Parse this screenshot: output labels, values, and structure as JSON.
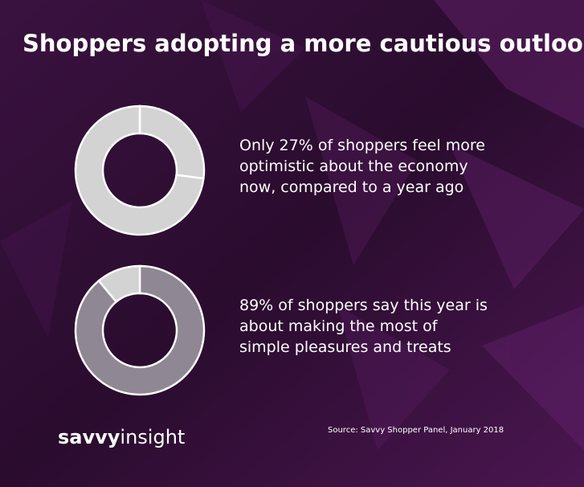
{
  "title": "Shoppers adopting a more cautious outlook",
  "chart_data": [
    {
      "type": "donut",
      "values": [
        27,
        73
      ],
      "colors": [
        "#d3d3d3",
        "#d3d3d3"
      ],
      "annotation": [
        "Only 27% of shoppers feel more",
        "optimistic about the economy",
        "now, compared to a year ago"
      ]
    },
    {
      "type": "donut",
      "values": [
        89,
        11
      ],
      "colors": [
        "#8f8794",
        "#d3d3d3"
      ],
      "annotation": [
        "89% of shoppers say this year is",
        "about making the most of",
        "simple pleasures and treats"
      ]
    }
  ],
  "source": "Source: Savvy Shopper Panel, January 2018",
  "brand": [
    "savvy",
    "insight"
  ]
}
